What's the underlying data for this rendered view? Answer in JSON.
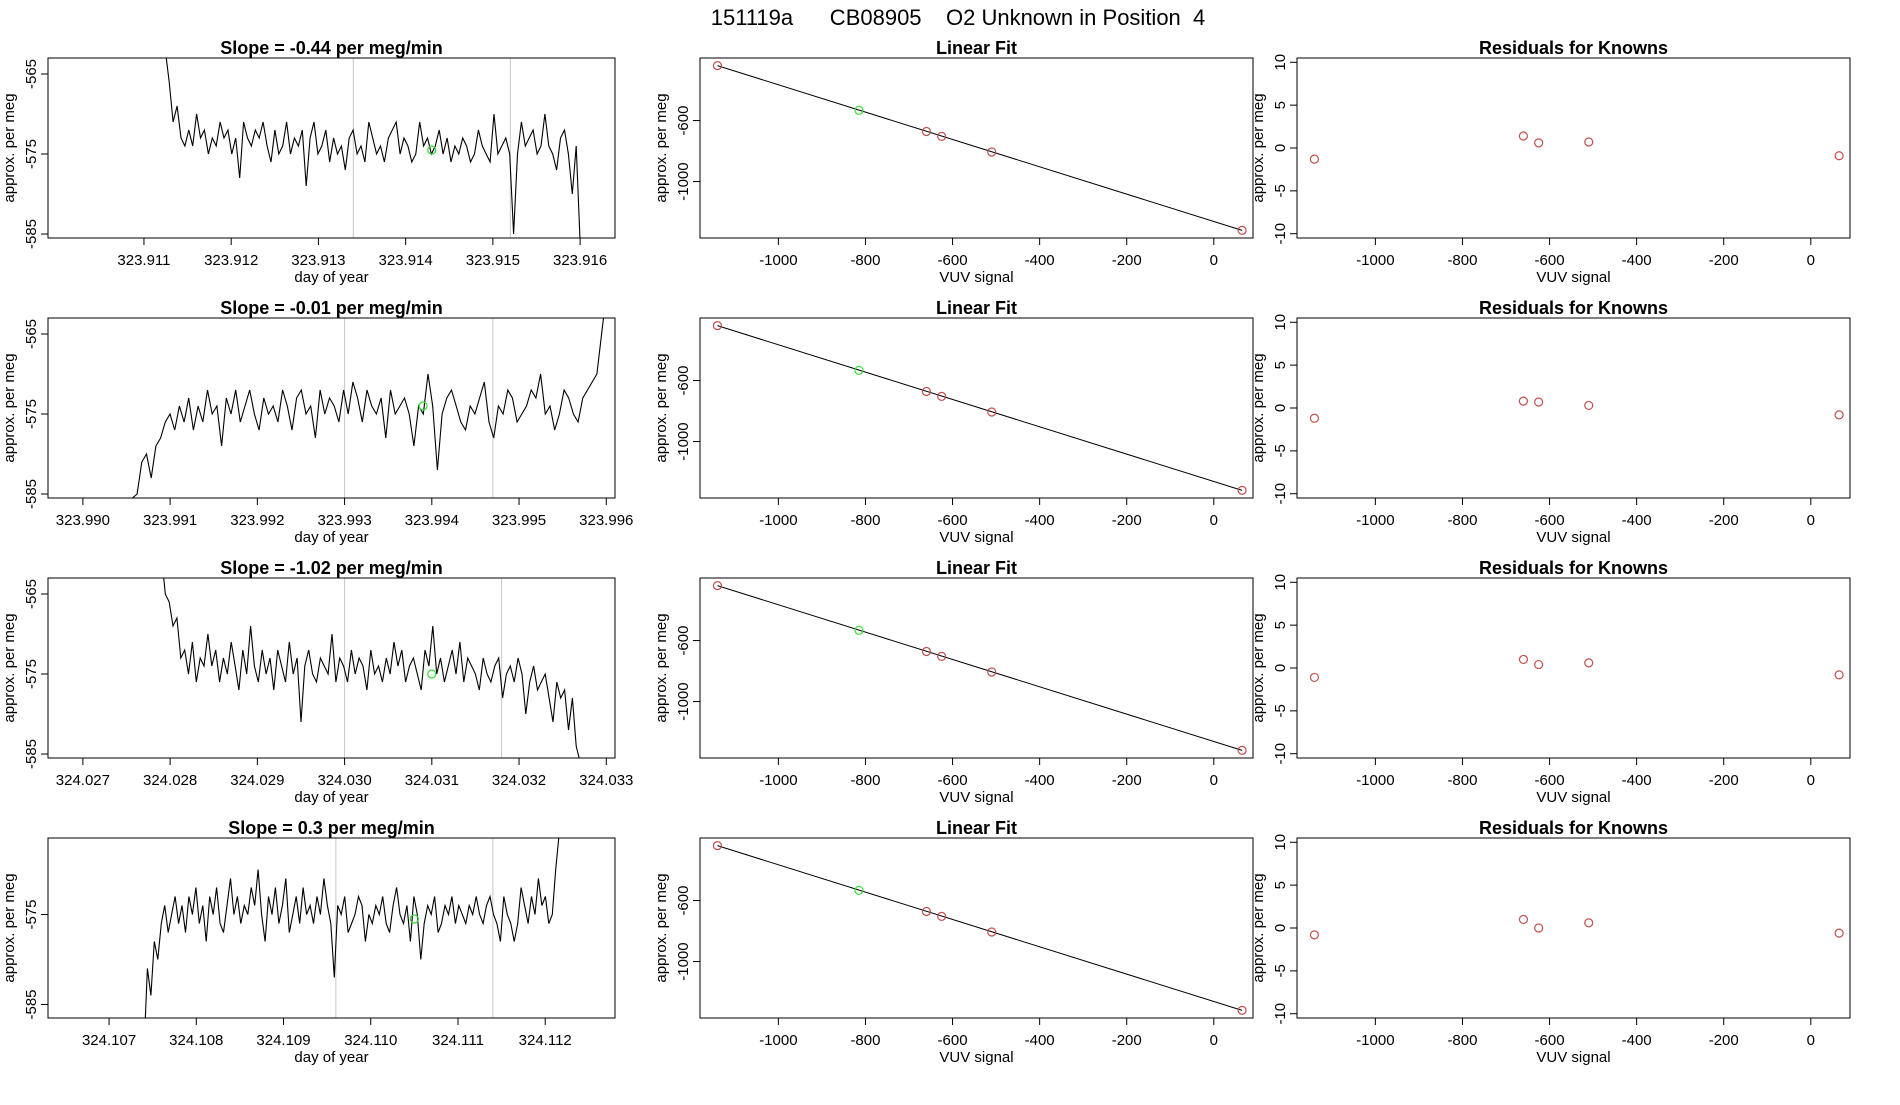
{
  "page_title": "151119a      CB08905    O2 Unknown in Position  4",
  "colors": {
    "line": "#000000",
    "known_point": "#c0504d",
    "unknown_point": "#33dd33",
    "marker_line": "#c8c8c8"
  },
  "chart_data": [
    {
      "type": "line",
      "row": 1,
      "column": "slope",
      "title": "Slope =  -0.44  per meg/min",
      "xlabel": "day of year",
      "ylabel": "approx. per meg",
      "xlim": [
        323.9099,
        323.9164
      ],
      "ylim": [
        -585.5,
        -563
      ],
      "xticks": [
        "323.911",
        "323.912",
        "323.913",
        "323.914",
        "323.915",
        "323.916"
      ],
      "yticks": [
        "-565",
        "-575",
        "-585"
      ],
      "vlines": [
        323.9134,
        323.9152
      ],
      "x_start": 323.9112,
      "x_end": 323.916,
      "series_y": [
        -560,
        -562,
        -566,
        -571,
        -569,
        -573,
        -574,
        -572,
        -574,
        -570,
        -573,
        -572,
        -575,
        -573,
        -574,
        -571,
        -573,
        -572,
        -575,
        -573,
        -578,
        -571,
        -573,
        -574,
        -572,
        -573,
        -571,
        -574,
        -576,
        -572,
        -575,
        -574,
        -571,
        -575,
        -573,
        -574,
        -572,
        -579,
        -573,
        -571,
        -575,
        -574,
        -572,
        -576,
        -573,
        -575,
        -574,
        -577,
        -573,
        -572,
        -575,
        -574,
        -576,
        -571,
        -573,
        -575,
        -574,
        -576,
        -573,
        -572,
        -571,
        -575,
        -573,
        -574,
        -576,
        -575,
        -571,
        -574,
        -573,
        -575,
        -574,
        -572,
        -575,
        -573,
        -576,
        -574,
        -575,
        -573,
        -574,
        -576,
        -575,
        -572,
        -574,
        -575,
        -576,
        -570,
        -575,
        -574,
        -573,
        -575,
        -585,
        -575,
        -571,
        -574,
        -573,
        -572,
        -575,
        -574,
        -570,
        -574,
        -575,
        -577,
        -573,
        -572,
        -575,
        -580,
        -574,
        -586
      ],
      "unknown_point": {
        "x": 323.9143,
        "y": -574.5
      }
    },
    {
      "type": "scatter",
      "row": 1,
      "column": "linear_fit",
      "title": "Linear Fit",
      "xlabel": "VUV signal",
      "ylabel": "approx. per meg",
      "xlim": [
        -1180,
        90
      ],
      "ylim": [
        -1370,
        -190
      ],
      "xticks": [
        -1000,
        -800,
        -600,
        -400,
        -200,
        0
      ],
      "yticks": [
        -600,
        -1000
      ],
      "fit_line": {
        "x": [
          -1140,
          65
        ],
        "y": [
          -240,
          -1320
        ]
      },
      "known_points": {
        "x": [
          -1140,
          -660,
          -625,
          -510,
          65
        ],
        "y": [
          -240,
          -672,
          -704,
          -806,
          -1320
        ]
      },
      "unknown_points": {
        "x": [
          -815
        ],
        "y": [
          -533
        ]
      }
    },
    {
      "type": "scatter",
      "row": 1,
      "column": "residuals",
      "title": "Residuals for Knowns",
      "xlabel": "VUV signal",
      "ylabel": "approx. per meg",
      "xlim": [
        -1180,
        90
      ],
      "ylim": [
        -10.5,
        10.5
      ],
      "xticks": [
        -1000,
        -800,
        -600,
        -400,
        -200,
        0
      ],
      "yticks": [
        10,
        5,
        0,
        -5,
        -10
      ],
      "points": {
        "x": [
          -1140,
          -660,
          -625,
          -510,
          65
        ],
        "y": [
          -1.3,
          1.4,
          0.6,
          0.7,
          -0.9
        ]
      }
    },
    {
      "type": "line",
      "row": 2,
      "column": "slope",
      "title": "Slope =  -0.01  per meg/min",
      "xlabel": "day of year",
      "ylabel": "approx. per meg",
      "xlim": [
        323.9896,
        323.9961
      ],
      "ylim": [
        -585.5,
        -563
      ],
      "xticks": [
        "323.990",
        "323.991",
        "323.992",
        "323.993",
        "323.994",
        "323.995",
        "323.996"
      ],
      "yticks": [
        "-565",
        "-575",
        "-585"
      ],
      "vlines": [
        323.993,
        323.9947
      ],
      "x_start": 323.9896,
      "x_end": 323.996,
      "series_y": [
        -585.5,
        -585.5,
        -585.5,
        -585.5,
        -585.5,
        -585.5,
        -585.5,
        -585.5,
        -585.5,
        -585.5,
        -585.5,
        -585.5,
        -585.5,
        -585.5,
        -585.5,
        -585.5,
        -585.5,
        -585.5,
        -585.5,
        -585,
        -581,
        -580,
        -583,
        -579,
        -578,
        -576,
        -575,
        -577,
        -574,
        -576,
        -573,
        -577,
        -574,
        -576,
        -572,
        -575,
        -574,
        -579,
        -573,
        -575,
        -572,
        -576,
        -574,
        -572,
        -575,
        -577,
        -573,
        -575,
        -574,
        -576,
        -572,
        -574,
        -577,
        -573,
        -572,
        -575,
        -574,
        -578,
        -572,
        -575,
        -573,
        -574,
        -576,
        -572,
        -575,
        -571,
        -573,
        -576,
        -572,
        -574,
        -575,
        -573,
        -578,
        -572,
        -575,
        -574,
        -573,
        -575,
        -579,
        -574,
        -575,
        -570,
        -574,
        -582,
        -575,
        -573,
        -572,
        -574,
        -576,
        -577,
        -574,
        -575,
        -573,
        -571,
        -576,
        -578,
        -574,
        -575,
        -572,
        -573,
        -576,
        -575,
        -574,
        -572,
        -573,
        -570,
        -575,
        -574,
        -577,
        -575,
        -572,
        -573,
        -575,
        -576,
        -573,
        -572,
        -571,
        -570,
        -565,
        -560
      ],
      "unknown_point": {
        "x": 323.9939,
        "y": -574.0
      }
    },
    {
      "type": "scatter",
      "row": 2,
      "column": "linear_fit",
      "title": "Linear Fit",
      "xlabel": "VUV signal",
      "ylabel": "approx. per meg",
      "xlim": [
        -1180,
        90
      ],
      "ylim": [
        -1370,
        -190
      ],
      "xticks": [
        -1000,
        -800,
        -600,
        -400,
        -200,
        0
      ],
      "yticks": [
        -600,
        -1000
      ],
      "fit_line": {
        "x": [
          -1140,
          65
        ],
        "y": [
          -240,
          -1320
        ]
      },
      "known_points": {
        "x": [
          -1140,
          -660,
          -625,
          -510,
          65
        ],
        "y": [
          -240,
          -672,
          -704,
          -806,
          -1320
        ]
      },
      "unknown_points": {
        "x": [
          -815
        ],
        "y": [
          -533
        ]
      }
    },
    {
      "type": "scatter",
      "row": 2,
      "column": "residuals",
      "title": "Residuals for Knowns",
      "xlabel": "VUV signal",
      "ylabel": "approx. per meg",
      "xlim": [
        -1180,
        90
      ],
      "ylim": [
        -10.5,
        10.5
      ],
      "xticks": [
        -1000,
        -800,
        -600,
        -400,
        -200,
        0
      ],
      "yticks": [
        10,
        5,
        0,
        -5,
        -10
      ],
      "points": {
        "x": [
          -1140,
          -660,
          -625,
          -510,
          65
        ],
        "y": [
          -1.2,
          0.8,
          0.7,
          0.3,
          -0.8
        ]
      }
    },
    {
      "type": "line",
      "row": 3,
      "column": "slope",
      "title": "Slope =  -1.02  per meg/min",
      "xlabel": "day of year",
      "ylabel": "approx. per meg",
      "xlim": [
        324.0266,
        324.0331
      ],
      "ylim": [
        -585.5,
        -563
      ],
      "xticks": [
        "324.027",
        "324.028",
        "324.029",
        "324.030",
        "324.031",
        "324.032",
        "324.033"
      ],
      "yticks": [
        "-565",
        "-575",
        "-585"
      ],
      "vlines": [
        324.03,
        324.0318
      ],
      "x_start": 324.0279,
      "x_end": 324.0327,
      "series_y": [
        -560,
        -565,
        -566,
        -569,
        -568,
        -573,
        -572,
        -575,
        -571,
        -576,
        -573,
        -574,
        -570,
        -574,
        -572,
        -576,
        -573,
        -575,
        -571,
        -574,
        -577,
        -572,
        -575,
        -569,
        -574,
        -576,
        -572,
        -575,
        -573,
        -577,
        -572,
        -574,
        -576,
        -571,
        -575,
        -573,
        -581,
        -574,
        -572,
        -575,
        -576,
        -573,
        -574,
        -575,
        -570,
        -576,
        -573,
        -574,
        -576,
        -572,
        -575,
        -573,
        -574,
        -577,
        -572,
        -575,
        -574,
        -576,
        -573,
        -575,
        -571,
        -574,
        -572,
        -576,
        -574,
        -573,
        -575,
        -577,
        -572,
        -574,
        -569,
        -575,
        -573,
        -576,
        -574,
        -572,
        -575,
        -571,
        -576,
        -573,
        -574,
        -575,
        -577,
        -573,
        -575,
        -576,
        -574,
        -573,
        -578,
        -575,
        -574,
        -576,
        -573,
        -575,
        -580,
        -576,
        -574,
        -577,
        -576,
        -575,
        -578,
        -581,
        -576,
        -578,
        -577,
        -582,
        -578,
        -584,
        -586
      ],
      "unknown_point": {
        "x": 324.031,
        "y": -575.0
      }
    },
    {
      "type": "scatter",
      "row": 3,
      "column": "linear_fit",
      "title": "Linear Fit",
      "xlabel": "VUV signal",
      "ylabel": "approx. per meg",
      "xlim": [
        -1180,
        90
      ],
      "ylim": [
        -1370,
        -190
      ],
      "xticks": [
        -1000,
        -800,
        -600,
        -400,
        -200,
        0
      ],
      "yticks": [
        -600,
        -1000
      ],
      "fit_line": {
        "x": [
          -1140,
          65
        ],
        "y": [
          -240,
          -1320
        ]
      },
      "known_points": {
        "x": [
          -1140,
          -660,
          -625,
          -510,
          65
        ],
        "y": [
          -240,
          -672,
          -704,
          -806,
          -1320
        ]
      },
      "unknown_points": {
        "x": [
          -815
        ],
        "y": [
          -533
        ]
      }
    },
    {
      "type": "scatter",
      "row": 3,
      "column": "residuals",
      "title": "Residuals for Knowns",
      "xlabel": "VUV signal",
      "ylabel": "approx. per meg",
      "xlim": [
        -1180,
        90
      ],
      "ylim": [
        -10.5,
        10.5
      ],
      "xticks": [
        -1000,
        -800,
        -600,
        -400,
        -200,
        0
      ],
      "yticks": [
        10,
        5,
        0,
        -5,
        -10
      ],
      "points": {
        "x": [
          -1140,
          -660,
          -625,
          -510,
          65
        ],
        "y": [
          -1.1,
          1.0,
          0.4,
          0.6,
          -0.8
        ]
      }
    },
    {
      "type": "line",
      "row": 4,
      "column": "slope",
      "title": "Slope =  0.3  per meg/min",
      "xlabel": "day of year",
      "ylabel": "approx. per meg",
      "xlim": [
        324.1063,
        324.1128
      ],
      "ylim": [
        -586.5,
        -566.5
      ],
      "xticks": [
        "324.107",
        "324.108",
        "324.109",
        "324.110",
        "324.111",
        "324.112"
      ],
      "yticks": [
        "-575",
        "-585"
      ],
      "vlines": [
        324.1096,
        324.1114
      ],
      "x_start": 324.1074,
      "x_end": 324.1122,
      "series_y": [
        -590,
        -581,
        -584,
        -578,
        -580,
        -576,
        -574,
        -577,
        -575,
        -573,
        -576,
        -574,
        -577,
        -573,
        -575,
        -572,
        -576,
        -574,
        -578,
        -573,
        -575,
        -572,
        -576,
        -577,
        -574,
        -571,
        -575,
        -573,
        -576,
        -574,
        -575,
        -572,
        -574,
        -570,
        -575,
        -578,
        -573,
        -575,
        -572,
        -576,
        -574,
        -571,
        -577,
        -575,
        -573,
        -576,
        -572,
        -575,
        -574,
        -576,
        -573,
        -575,
        -571,
        -574,
        -576,
        -582,
        -574,
        -575,
        -573,
        -577,
        -576,
        -575,
        -573,
        -574,
        -578,
        -575,
        -576,
        -574,
        -575,
        -573,
        -576,
        -577,
        -574,
        -572,
        -575,
        -576,
        -574,
        -578,
        -573,
        -575,
        -580,
        -576,
        -574,
        -575,
        -573,
        -577,
        -576,
        -574,
        -575,
        -573,
        -576,
        -574,
        -575,
        -576,
        -574,
        -575,
        -573,
        -575,
        -576,
        -574,
        -573,
        -575,
        -576,
        -578,
        -573,
        -575,
        -576,
        -578,
        -576,
        -572,
        -574,
        -576,
        -573,
        -575,
        -571,
        -574,
        -573,
        -576,
        -575,
        -570,
        -566,
        -562
      ],
      "unknown_point": {
        "x": 324.1105,
        "y": -575.5
      }
    },
    {
      "type": "scatter",
      "row": 4,
      "column": "linear_fit",
      "title": "Linear Fit",
      "xlabel": "VUV signal",
      "ylabel": "approx. per meg",
      "xlim": [
        -1180,
        90
      ],
      "ylim": [
        -1370,
        -190
      ],
      "xticks": [
        -1000,
        -800,
        -600,
        -400,
        -200,
        0
      ],
      "yticks": [
        -600,
        -1000
      ],
      "fit_line": {
        "x": [
          -1140,
          65
        ],
        "y": [
          -240,
          -1320
        ]
      },
      "known_points": {
        "x": [
          -1140,
          -660,
          -625,
          -510,
          65
        ],
        "y": [
          -240,
          -672,
          -704,
          -806,
          -1320
        ]
      },
      "unknown_points": {
        "x": [
          -815
        ],
        "y": [
          -533
        ]
      }
    },
    {
      "type": "scatter",
      "row": 4,
      "column": "residuals",
      "title": "Residuals for Knowns",
      "xlabel": "VUV signal",
      "ylabel": "approx. per meg",
      "xlim": [
        -1180,
        90
      ],
      "ylim": [
        -10.5,
        10.5
      ],
      "xticks": [
        -1000,
        -800,
        -600,
        -400,
        -200,
        0
      ],
      "yticks": [
        10,
        5,
        0,
        -5,
        -10
      ],
      "points": {
        "x": [
          -1140,
          -660,
          -625,
          -510,
          65
        ],
        "y": [
          -0.8,
          1.0,
          0.0,
          0.6,
          -0.6
        ]
      }
    }
  ]
}
